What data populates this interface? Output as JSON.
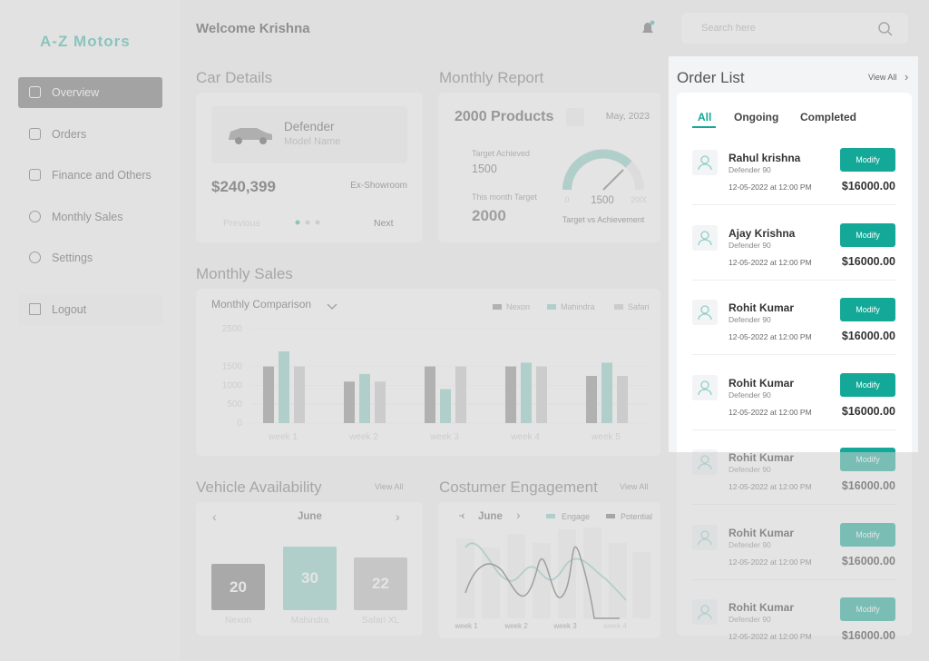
{
  "sidebar": {
    "brand": "A-Z Motors",
    "menu": [
      "Overview",
      "Orders",
      "Finance and Others",
      "Monthly Sales",
      "Settings"
    ],
    "logout": "Logout"
  },
  "header": {
    "welcome": "Welcome Krishna",
    "search_placeholder": "Search here"
  },
  "car_details": {
    "title": "Car Details",
    "car_name": "Defender",
    "model_label": "Model Name",
    "price": "$240,399",
    "price_note": "Ex-Showroom",
    "prev": "Previous",
    "next": "Next"
  },
  "monthly_report": {
    "title": "Monthly Report",
    "products": "2000 Products",
    "date": "May, 2023",
    "achieved_label": "Target Achieved",
    "achieved": "1500",
    "target_label": "This month Target",
    "target": "2000",
    "gauge_min": "0",
    "gauge_value": "1500",
    "gauge_max": "2000",
    "gauge_caption": "Target vs Achievement"
  },
  "monthly_sales": {
    "title": "Monthly Sales"
  },
  "chart_data": {
    "type": "bar",
    "title": "Monthly Comparison",
    "categories": [
      "week 1",
      "week 2",
      "week 3",
      "week 4",
      "week 5"
    ],
    "series": [
      {
        "name": "Nexon",
        "color": "#8f8f8f",
        "values": [
          1500,
          1100,
          1500,
          1500,
          1250
        ]
      },
      {
        "name": "Mahindra",
        "color": "#8fd0c6",
        "values": [
          1900,
          1300,
          900,
          1600,
          1600
        ]
      },
      {
        "name": "Safari",
        "color": "#c9c9c9",
        "values": [
          1500,
          1100,
          1500,
          1500,
          1250
        ]
      }
    ],
    "ylim": [
      0,
      2500
    ],
    "yticks": [
      0,
      500,
      1000,
      1500,
      2500
    ]
  },
  "vehicle_availability": {
    "title": "Vehicle Availability",
    "view_all": "View All",
    "month": "June",
    "items": [
      {
        "value": "20",
        "label": "Nexon"
      },
      {
        "value": "30",
        "label": "Mahindra"
      },
      {
        "value": "22",
        "label": "Safari XL"
      }
    ]
  },
  "engagement": {
    "title": "Costumer Engagement",
    "view_all": "View All",
    "month": "June",
    "legend": [
      "Engage",
      "Potential"
    ],
    "weeks": [
      "week 1",
      "week 2",
      "week 3",
      "week 4"
    ]
  },
  "order_list": {
    "title": "Order List",
    "view_all": "View All",
    "tabs": [
      "All",
      "Ongoing",
      "Completed"
    ],
    "orders": [
      {
        "name": "Rahul krishna",
        "model": "Defender 90",
        "date": "12-05-2022 at 12:00 PM",
        "amount": "$16000.00",
        "action": "Modify"
      },
      {
        "name": "Ajay Krishna",
        "model": "Defender 90",
        "date": "12-05-2022 at 12:00 PM",
        "amount": "$16000.00",
        "action": "Modify"
      },
      {
        "name": "Rohit Kumar",
        "model": "Defender 90",
        "date": "12-05-2022 at 12:00 PM",
        "amount": "$16000.00",
        "action": "Modify"
      },
      {
        "name": "Rohit Kumar",
        "model": "Defender 90",
        "date": "12-05-2022 at 12:00 PM",
        "amount": "$16000.00",
        "action": "Modify"
      },
      {
        "name": "Rohit Kumar",
        "model": "Defender 90",
        "date": "12-05-2022 at 12:00 PM",
        "amount": "$16000.00",
        "action": "Modify"
      },
      {
        "name": "Rohit Kumar",
        "model": "Defender 90",
        "date": "12-05-2022 at 12:00 PM",
        "amount": "$16000.00",
        "action": "Modify"
      },
      {
        "name": "Rohit Kumar",
        "model": "Defender 90",
        "date": "12-05-2022 at 12:00 PM",
        "amount": "$16000.00",
        "action": "Modify"
      }
    ]
  }
}
